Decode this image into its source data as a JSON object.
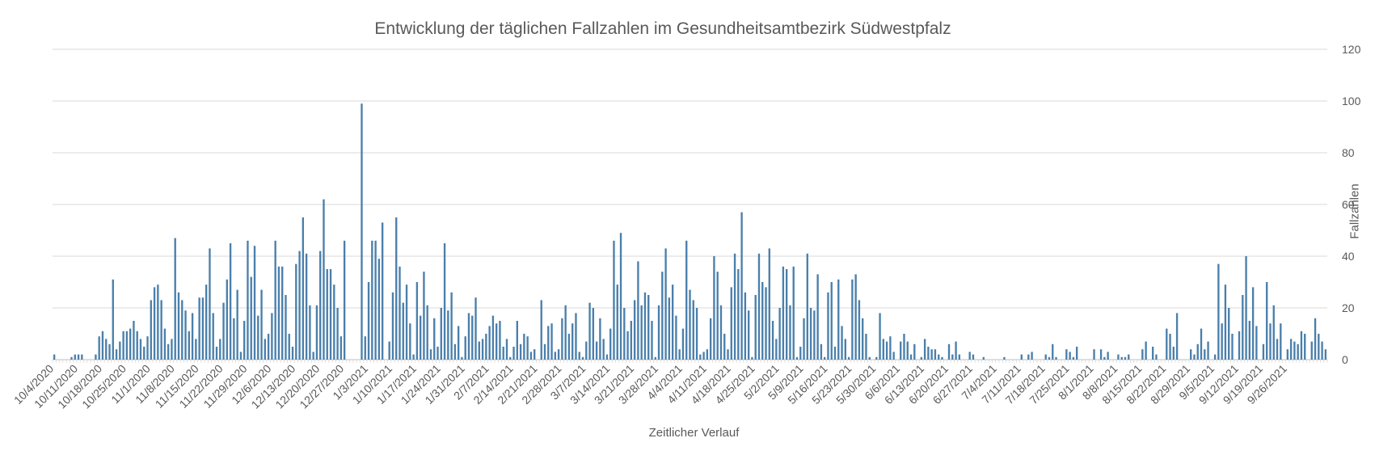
{
  "chart_data": {
    "type": "bar",
    "title": "Entwicklung der täglichen Fallzahlen im Gesundheitsamtbezirk Südwestpfalz",
    "xlabel": "Zeitlicher Verlauf",
    "ylabel": "Fallzahlen",
    "ylim": [
      0,
      120
    ],
    "yticks": [
      0,
      20,
      40,
      60,
      80,
      100,
      120
    ],
    "y_axis_side": "right",
    "grid": true,
    "color": "#4a7fab",
    "start_date": "2020-10-04",
    "x_tick_labels": [
      "10/4/2020",
      "10/11/2020",
      "10/18/2020",
      "10/25/2020",
      "11/1/2020",
      "11/8/2020",
      "11/15/2020",
      "11/22/2020",
      "11/29/2020",
      "12/6/2020",
      "12/13/2020",
      "12/20/2020",
      "12/27/2020",
      "1/3/2021",
      "1/10/2021",
      "1/17/2021",
      "1/24/2021",
      "1/31/2021",
      "2/7/2021",
      "2/14/2021",
      "2/21/2021",
      "2/28/2021",
      "3/7/2021",
      "3/14/2021",
      "3/21/2021",
      "3/28/2021",
      "4/4/2021",
      "4/11/2021",
      "4/18/2021",
      "4/25/2021",
      "5/2/2021",
      "5/9/2021",
      "5/16/2021",
      "5/23/2021",
      "5/30/2021",
      "6/6/2021",
      "6/13/2021",
      "6/20/2021",
      "6/27/2021",
      "7/4/2021",
      "7/11/2021",
      "7/18/2021",
      "7/25/2021",
      "8/1/2021",
      "8/8/2021",
      "8/15/2021",
      "8/22/2021",
      "8/29/2021",
      "9/5/2021",
      "9/12/2021",
      "9/19/2021",
      "9/26/2021"
    ],
    "values": [
      2,
      0,
      0,
      0,
      0,
      1,
      2,
      2,
      2,
      0,
      0,
      0,
      2,
      9,
      11,
      8,
      6,
      31,
      4,
      7,
      11,
      11,
      12,
      15,
      11,
      8,
      5,
      9,
      23,
      28,
      29,
      23,
      12,
      6,
      8,
      47,
      26,
      23,
      19,
      11,
      18,
      8,
      24,
      24,
      29,
      43,
      18,
      5,
      8,
      22,
      31,
      45,
      16,
      27,
      3,
      15,
      46,
      32,
      44,
      17,
      27,
      8,
      10,
      18,
      46,
      36,
      36,
      25,
      10,
      5,
      37,
      42,
      55,
      41,
      21,
      3,
      21,
      42,
      62,
      35,
      35,
      29,
      20,
      9,
      46,
      0,
      0,
      0,
      0,
      99,
      9,
      30,
      46,
      46,
      39,
      53,
      0,
      7,
      26,
      55,
      36,
      22,
      29,
      14,
      2,
      30,
      17,
      34,
      21,
      4,
      16,
      5,
      20,
      45,
      19,
      26,
      6,
      13,
      1,
      9,
      18,
      17,
      24,
      7,
      8,
      10,
      13,
      17,
      14,
      15,
      5,
      8,
      1,
      5,
      15,
      6,
      10,
      9,
      3,
      4,
      0,
      23,
      6,
      13,
      14,
      3,
      4,
      16,
      21,
      10,
      14,
      18,
      3,
      1,
      7,
      22,
      20,
      7,
      16,
      8,
      2,
      12,
      46,
      29,
      49,
      20,
      11,
      15,
      23,
      38,
      21,
      26,
      25,
      15,
      1,
      21,
      34,
      43,
      24,
      29,
      17,
      4,
      12,
      46,
      27,
      23,
      20,
      2,
      3,
      4,
      16,
      40,
      34,
      21,
      10,
      4,
      28,
      41,
      35,
      57,
      26,
      19,
      1,
      25,
      41,
      30,
      28,
      43,
      15,
      8,
      20,
      36,
      35,
      21,
      36,
      1,
      5,
      16,
      41,
      20,
      19,
      33,
      6,
      1,
      26,
      30,
      5,
      31,
      13,
      8,
      1,
      31,
      33,
      23,
      16,
      10,
      1,
      0,
      1,
      18,
      8,
      7,
      9,
      3,
      0,
      7,
      10,
      7,
      2,
      6,
      0,
      1,
      8,
      5,
      4,
      4,
      2,
      1,
      0,
      6,
      2,
      7,
      2,
      0,
      0,
      3,
      2,
      0,
      0,
      1,
      0,
      0,
      0,
      0,
      0,
      1,
      0,
      0,
      0,
      0,
      2,
      0,
      2,
      3,
      0,
      0,
      0,
      2,
      1,
      6,
      1,
      0,
      0,
      4,
      3,
      1,
      5,
      0,
      0,
      0,
      0,
      4,
      0,
      4,
      1,
      3,
      0,
      0,
      2,
      1,
      1,
      2,
      0,
      0,
      0,
      4,
      7,
      0,
      5,
      2,
      0,
      0,
      12,
      10,
      5,
      18,
      0,
      0,
      0,
      4,
      2,
      6,
      12,
      4,
      7,
      0,
      2,
      37,
      14,
      29,
      20,
      10,
      0,
      11,
      25,
      40,
      15,
      28,
      13,
      0,
      6,
      30,
      14,
      21,
      8,
      14,
      0,
      4,
      8,
      7,
      6,
      11,
      10,
      0,
      7,
      16,
      10,
      7,
      4
    ]
  }
}
